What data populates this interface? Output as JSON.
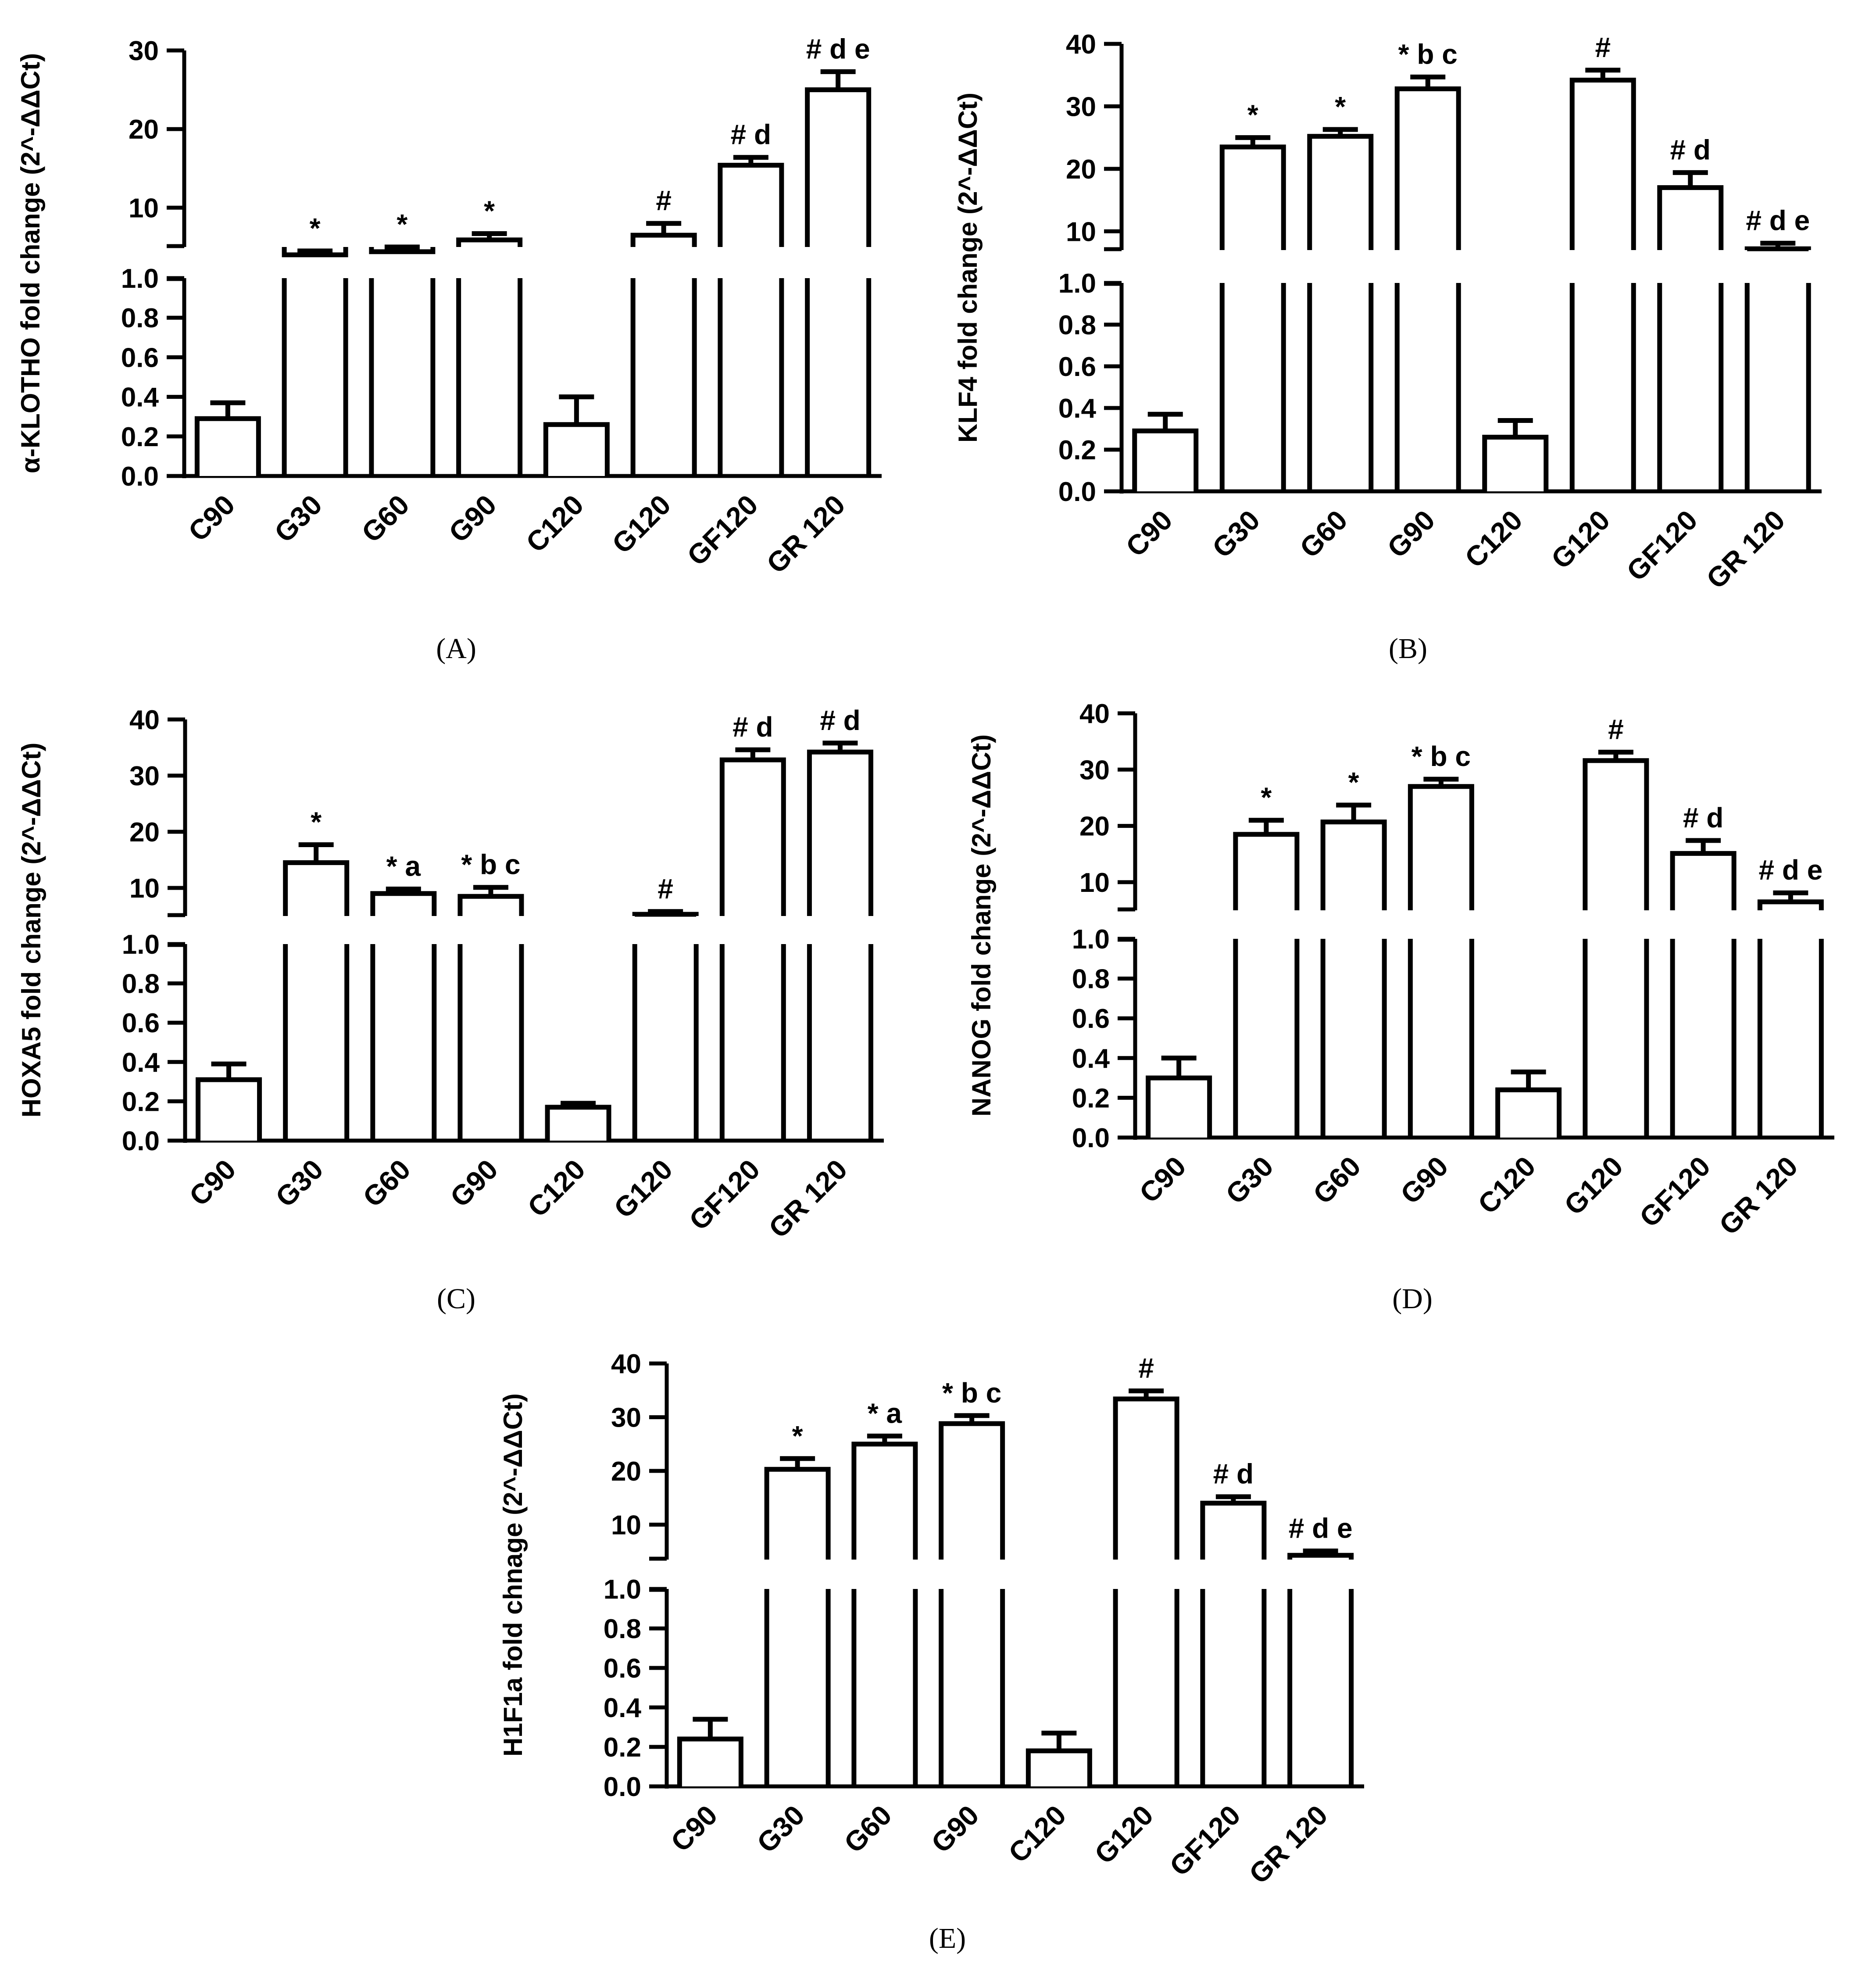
{
  "figure": {
    "categories": [
      "C90",
      "G30",
      "G60",
      "G90",
      "C120",
      "G120",
      "GF120",
      "GR 120"
    ]
  },
  "chart_data": [
    {
      "panel": "A",
      "caption": "(A)",
      "type": "bar",
      "ylabel": "α-KLOTHO fold change (2^-ΔΔCt)",
      "categories": [
        "C90",
        "G30",
        "G60",
        "G90",
        "C120",
        "G120",
        "GF120",
        "GR 120"
      ],
      "values": [
        0.29,
        4.0,
        4.4,
        5.9,
        0.26,
        6.5,
        15.4,
        25.0
      ],
      "errors": [
        0.08,
        0.5,
        0.6,
        0.8,
        0.14,
        1.5,
        1.0,
        2.3
      ],
      "annotations": [
        "",
        "*",
        "*",
        "*",
        "",
        "#",
        "# d",
        "# d e"
      ],
      "upper_axis": {
        "ylim": [
          5,
          30
        ],
        "ticks": [
          10,
          20,
          30
        ]
      },
      "lower_axis": {
        "ylim": [
          0,
          1.0
        ],
        "ticks": [
          0.0,
          0.2,
          0.4,
          0.6,
          0.8,
          1.0
        ]
      }
    },
    {
      "panel": "B",
      "caption": "(B)",
      "type": "bar",
      "ylabel": "KLF4 fold change (2^-ΔΔCt)",
      "categories": [
        "C90",
        "G30",
        "G60",
        "G90",
        "C120",
        "G120",
        "GF120",
        "GR 120"
      ],
      "values": [
        0.29,
        23.5,
        25.2,
        32.8,
        0.26,
        34.2,
        17.0,
        7.2
      ],
      "errors": [
        0.08,
        1.5,
        1.1,
        1.9,
        0.08,
        1.6,
        2.4,
        0.9
      ],
      "annotations": [
        "",
        "*",
        "*",
        "* b c",
        "",
        "#",
        "# d",
        "# d e"
      ],
      "upper_axis": {
        "ylim": [
          7,
          40
        ],
        "ticks": [
          10,
          20,
          30,
          40
        ]
      },
      "lower_axis": {
        "ylim": [
          0,
          1.0
        ],
        "ticks": [
          0.0,
          0.2,
          0.4,
          0.6,
          0.8,
          1.0
        ]
      }
    },
    {
      "panel": "C",
      "caption": "(C)",
      "type": "bar",
      "ylabel": "HOXA5 fold change (2^-ΔΔCt)",
      "categories": [
        "C90",
        "G30",
        "G60",
        "G90",
        "C120",
        "G120",
        "GF120",
        "GR 120"
      ],
      "values": [
        0.31,
        14.5,
        9.0,
        8.5,
        0.17,
        5.3,
        32.8,
        34.2
      ],
      "errors": [
        0.08,
        3.2,
        0.8,
        1.6,
        0.02,
        0.5,
        1.8,
        1.6
      ],
      "annotations": [
        "",
        "*",
        "* a",
        "*  b c",
        "",
        "#",
        "# d",
        "# d"
      ],
      "upper_axis": {
        "ylim": [
          5,
          40
        ],
        "ticks": [
          10,
          20,
          30,
          40
        ]
      },
      "lower_axis": {
        "ylim": [
          0,
          1.0
        ],
        "ticks": [
          0.0,
          0.2,
          0.4,
          0.6,
          0.8,
          1.0
        ]
      }
    },
    {
      "panel": "D",
      "caption": "(D)",
      "type": "bar",
      "ylabel": "NANOG fold change (2^-ΔΔCt)",
      "categories": [
        "C90",
        "G30",
        "G60",
        "G90",
        "C120",
        "G120",
        "GF120",
        "GR 120"
      ],
      "values": [
        0.3,
        18.5,
        20.7,
        27.0,
        0.24,
        31.6,
        15.1,
        6.5
      ],
      "errors": [
        0.1,
        2.5,
        3.0,
        1.3,
        0.09,
        1.5,
        2.3,
        1.6
      ],
      "annotations": [
        "",
        "*",
        "*",
        "* b c",
        "",
        "#",
        "# d",
        "# d e"
      ],
      "upper_axis": {
        "ylim": [
          5,
          40
        ],
        "ticks": [
          10,
          20,
          30,
          40
        ]
      },
      "lower_axis": {
        "ylim": [
          0,
          1.0
        ],
        "ticks": [
          0.0,
          0.2,
          0.4,
          0.6,
          0.8,
          1.0
        ]
      }
    },
    {
      "panel": "E",
      "caption": "(E)",
      "type": "bar",
      "ylabel": "H1F1a fold chnage (2^-ΔΔCt)",
      "categories": [
        "C90",
        "G30",
        "G60",
        "G90",
        "C120",
        "G120",
        "GF120",
        "GR 120"
      ],
      "values": [
        0.24,
        20.3,
        25.0,
        28.8,
        0.18,
        33.4,
        14.0,
        4.3
      ],
      "errors": [
        0.1,
        2.0,
        1.5,
        1.5,
        0.09,
        1.5,
        1.2,
        0.8
      ],
      "annotations": [
        "",
        "*",
        "* a",
        "* b c",
        "",
        "#",
        "# d",
        "# d e"
      ],
      "upper_axis": {
        "ylim": [
          3.5,
          40
        ],
        "ticks": [
          10,
          20,
          30,
          40
        ]
      },
      "lower_axis": {
        "ylim": [
          0,
          1.0
        ],
        "ticks": [
          0.0,
          0.2,
          0.4,
          0.6,
          0.8,
          1.0
        ]
      }
    }
  ]
}
